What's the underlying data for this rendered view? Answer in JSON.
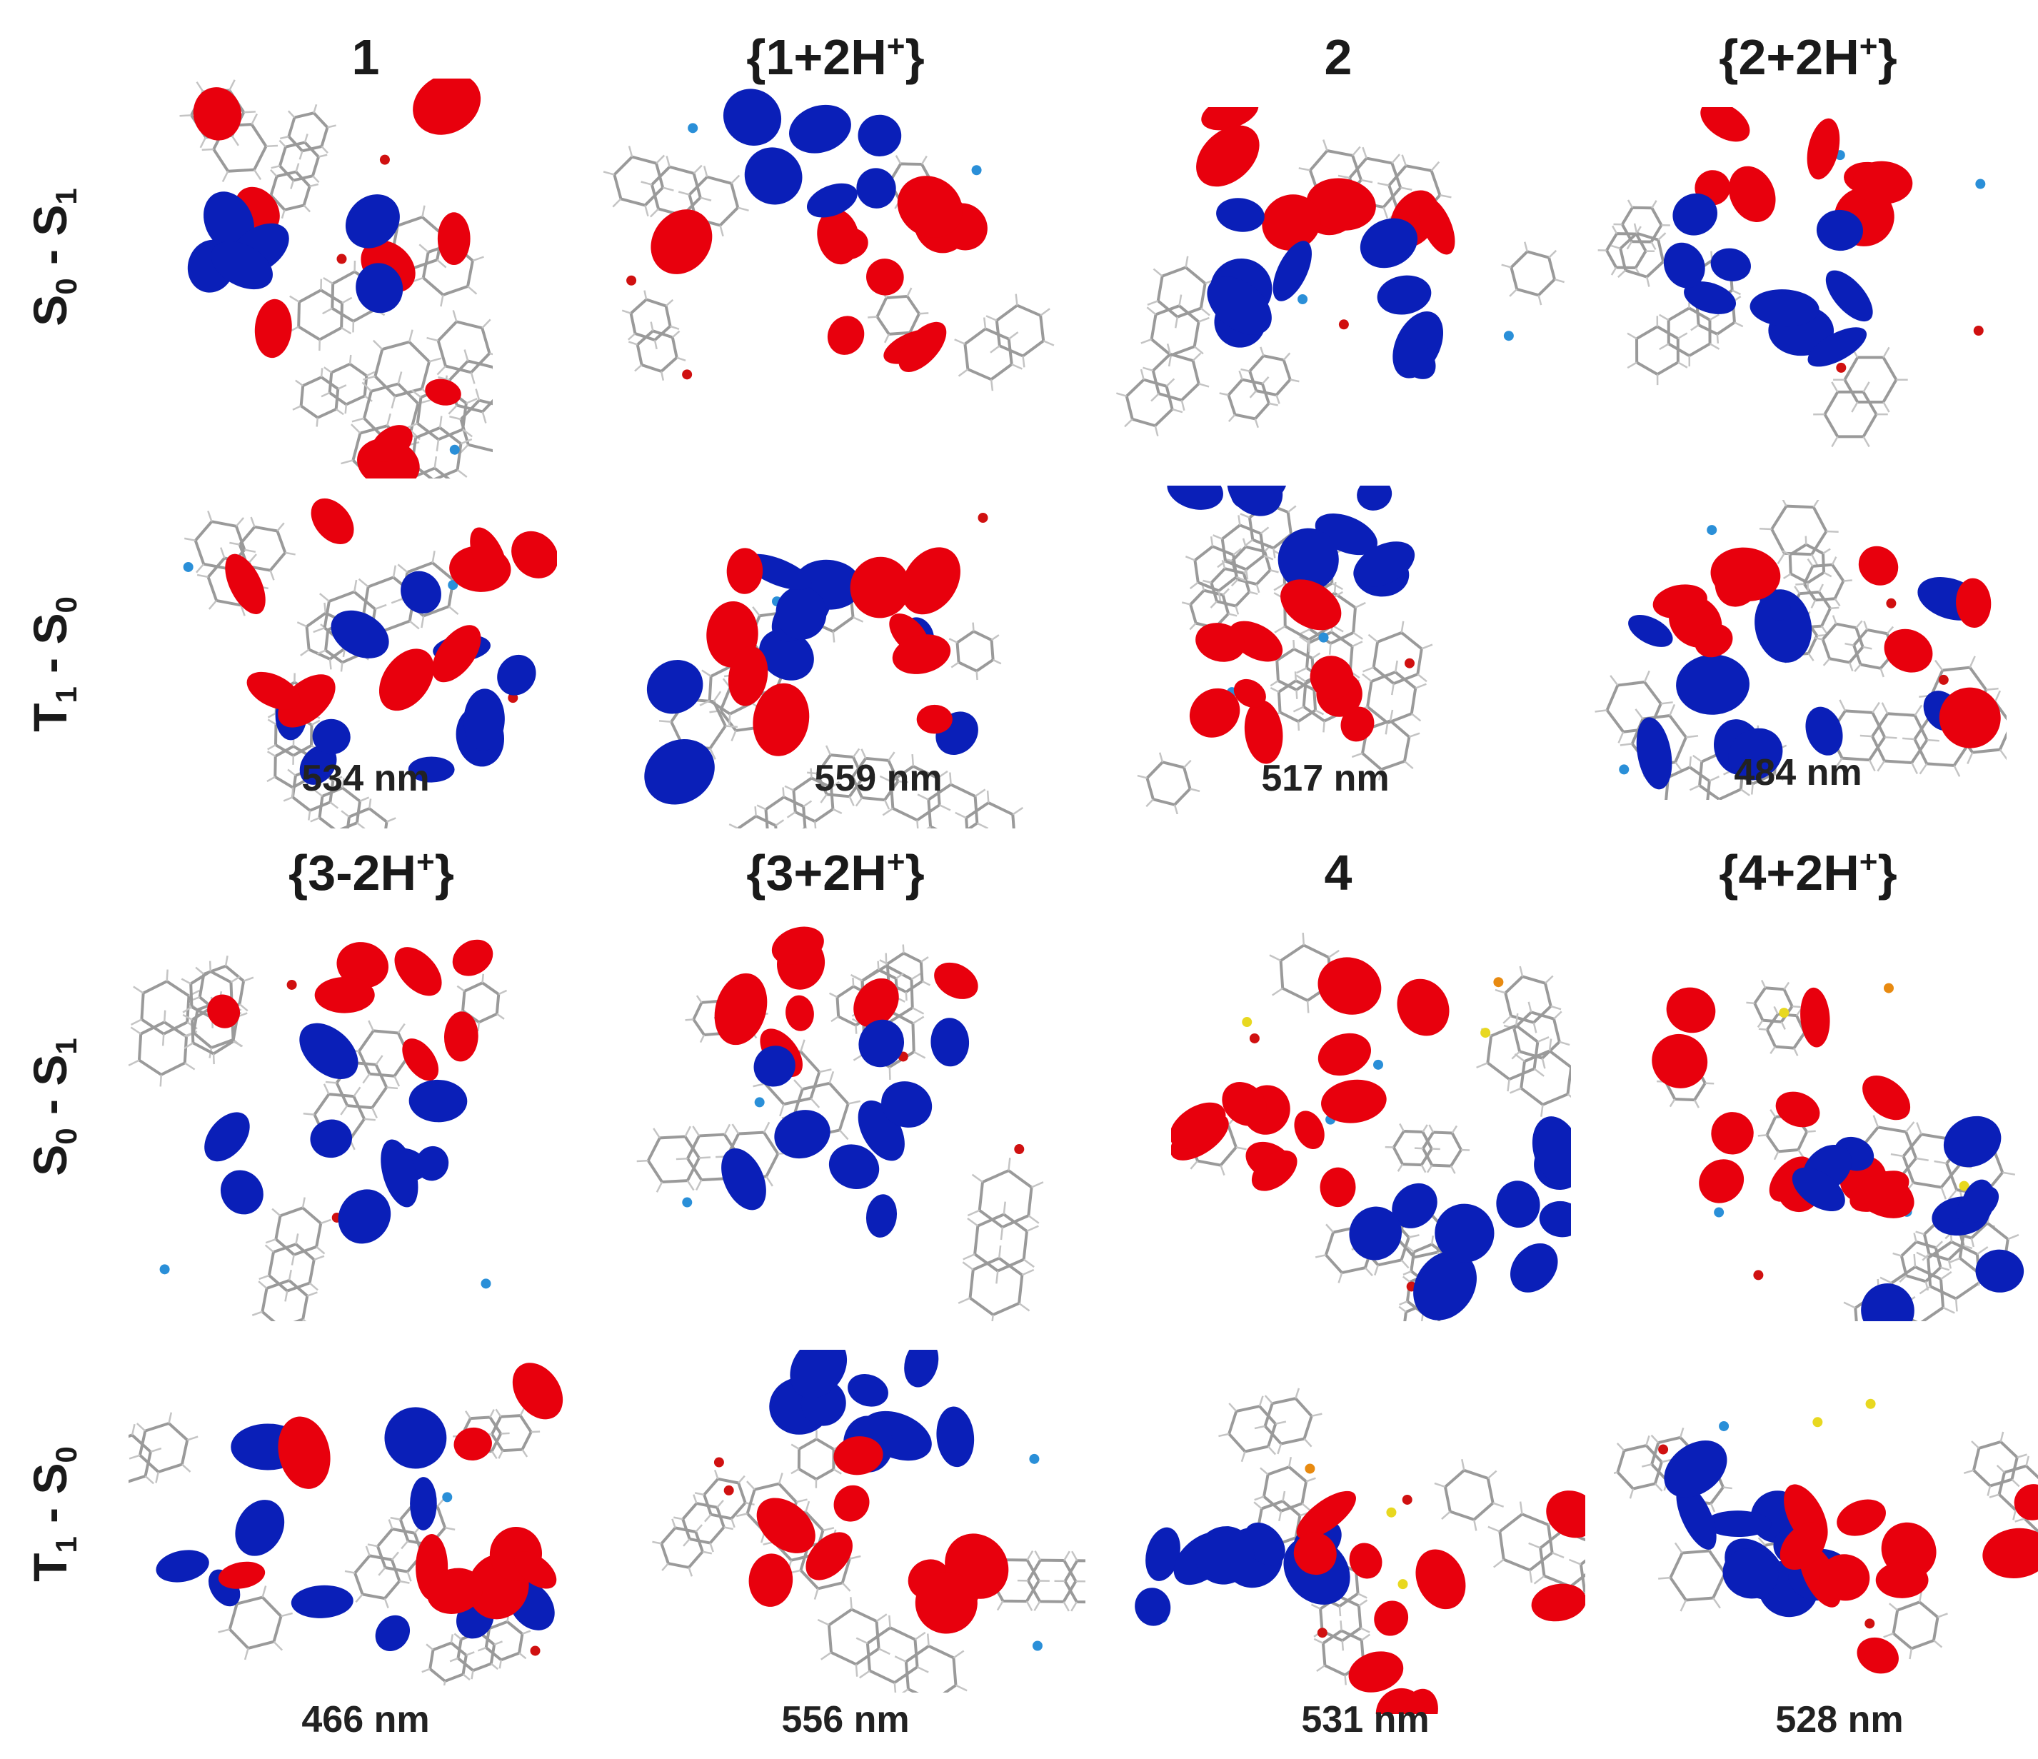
{
  "columns_top": [
    {
      "prefix": "",
      "bold": "1",
      "suffix": "",
      "sup": ""
    },
    {
      "prefix": "{",
      "bold": "1",
      "suffix": "+2H",
      "sup": "+",
      "close": "}"
    },
    {
      "prefix": "",
      "bold": "2",
      "suffix": "",
      "sup": ""
    },
    {
      "prefix": "{",
      "bold": "2",
      "suffix": "+2H",
      "sup": "+",
      "close": "}"
    }
  ],
  "columns_bottom": [
    {
      "prefix": "{",
      "bold": "3",
      "suffix": "-2H",
      "sup": "+",
      "close": "}"
    },
    {
      "prefix": "{",
      "bold": "3",
      "suffix": "+2H",
      "sup": "+",
      "close": "}"
    },
    {
      "prefix": "",
      "bold": "4",
      "suffix": "",
      "sup": ""
    },
    {
      "prefix": "{",
      "bold": "4",
      "suffix": "+2H",
      "sup": "+",
      "close": "}"
    }
  ],
  "row_labels": [
    {
      "a": "S",
      "a_sub": "0",
      "sep": " - ",
      "b": "S",
      "b_sub": "1"
    },
    {
      "a": "T",
      "a_sub": "1",
      "sep": " - ",
      "b": "S",
      "b_sub": "0"
    },
    {
      "a": "S",
      "a_sub": "0",
      "sep": " - ",
      "b": "S",
      "b_sub": "1"
    },
    {
      "a": "T",
      "a_sub": "1",
      "sep": " - ",
      "b": "S",
      "b_sub": "0"
    }
  ],
  "wavelengths_top": [
    "534 nm",
    "559 nm",
    "517 nm",
    "484 nm"
  ],
  "wavelengths_bottom": [
    "466 nm",
    "556 nm",
    "531 nm",
    "528 nm"
  ],
  "colors": {
    "lobe_positive": "#e8000d",
    "lobe_negative": "#0a1fb8",
    "bond": "#9a9a9a",
    "nitrogen": "#2a8fd8",
    "oxygen": "#d01010",
    "sulfur": "#e8d820",
    "phosphorus": "#e88a10"
  }
}
